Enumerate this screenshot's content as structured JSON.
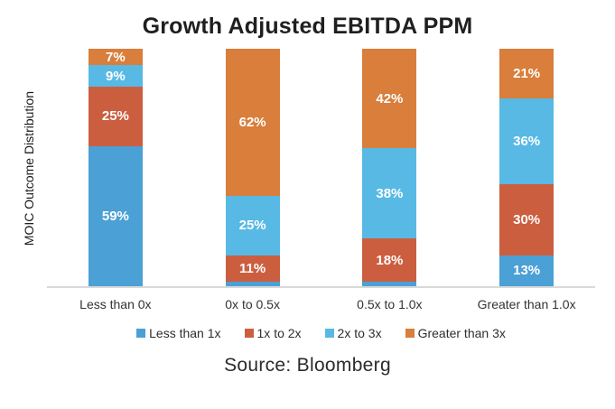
{
  "source_label": "Source: Bloomberg",
  "chart_data": {
    "type": "bar",
    "stacked": true,
    "title": "Growth Adjusted EBITDA PPM",
    "ylabel": "MOIC Outcome Distribution",
    "xlabel": "",
    "unit": "%",
    "ylim": [
      0,
      100
    ],
    "grid": false,
    "legend_position": "bottom",
    "categories": [
      "Less than 0x",
      "0x to 0.5x",
      "0.5x to 1.0x",
      "Greater than 1.0x"
    ],
    "series": [
      {
        "name": "Less than 1x",
        "color": "#4BA0D5",
        "values": [
          59,
          2,
          2,
          13
        ],
        "labels": [
          "59%",
          "",
          "",
          "13%"
        ]
      },
      {
        "name": "1x to 2x",
        "color": "#CC5E40",
        "values": [
          25,
          11,
          18,
          30
        ],
        "labels": [
          "25%",
          "11%",
          "18%",
          "30%"
        ]
      },
      {
        "name": "2x to 3x",
        "color": "#58B9E4",
        "values": [
          9,
          25,
          38,
          36
        ],
        "labels": [
          "9%",
          "25%",
          "38%",
          "36%"
        ]
      },
      {
        "name": "Greater than 3x",
        "color": "#D97E3B",
        "values": [
          7,
          62,
          42,
          21
        ],
        "labels": [
          "7%",
          "62%",
          "42%",
          "21%"
        ]
      }
    ]
  }
}
